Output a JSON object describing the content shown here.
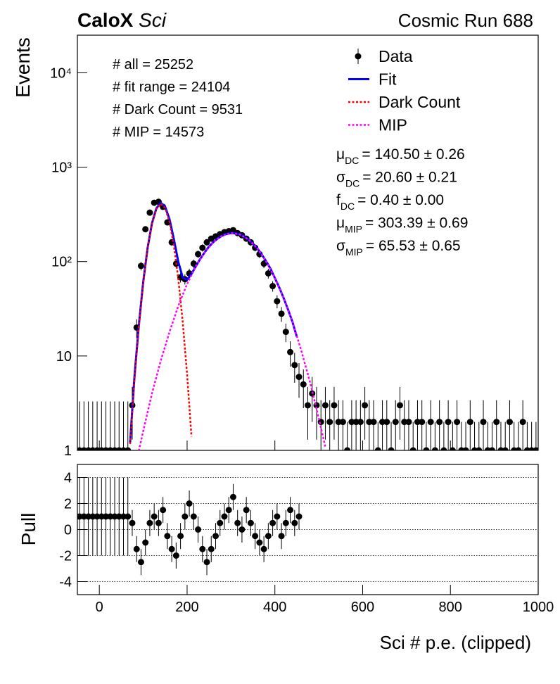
{
  "chart_data": [
    {
      "type": "scatter",
      "title": "CaloX",
      "title_suffix": "Sci",
      "run_label": "Cosmic Run 688",
      "y_label": "Events",
      "log_y": true,
      "legend": "top-right",
      "xlim": [
        -50,
        1000
      ],
      "ylim": [
        1,
        25000
      ],
      "yticks": [
        1,
        10,
        {
          "value": 100,
          "label": "10²"
        },
        {
          "value": 1000,
          "label": "10³"
        },
        {
          "value": 10000,
          "label": "10⁴"
        }
      ],
      "stats": [
        "# all = 25252",
        "# fit range = 24104",
        "# Dark Count = 9531",
        "# MIP = 14573"
      ],
      "fit_parameters": [
        {
          "symbol": "μ",
          "sub": "DC",
          "text": "= 140.50 ± 0.26"
        },
        {
          "symbol": "σ",
          "sub": "DC",
          "text": "= 20.60 ± 0.21"
        },
        {
          "symbol": "f",
          "sub": "DC",
          "text": "= 0.40 ± 0.00"
        },
        {
          "symbol": "μ",
          "sub": "MIP",
          "text": "= 303.39 ± 0.69"
        },
        {
          "symbol": "σ",
          "sub": "MIP",
          "text": "= 65.53 ± 0.65"
        }
      ],
      "series": [
        {
          "name": "Data",
          "mark": "points",
          "color": "#000000",
          "x": [
            -45,
            -35,
            -25,
            -15,
            -5,
            5,
            15,
            25,
            35,
            45,
            55,
            65,
            75,
            85,
            95,
            105,
            115,
            125,
            135,
            145,
            155,
            165,
            175,
            185,
            195,
            205,
            215,
            225,
            235,
            245,
            255,
            265,
            275,
            285,
            295,
            305,
            315,
            325,
            335,
            345,
            355,
            365,
            375,
            385,
            395,
            405,
            415,
            425,
            435,
            445,
            455,
            465,
            475,
            485,
            495,
            505,
            515,
            525,
            535,
            545,
            555,
            565,
            575,
            585,
            595,
            605,
            615,
            625,
            635,
            645,
            655,
            665,
            675,
            685,
            695,
            705,
            715,
            725,
            735,
            745,
            755,
            765,
            775,
            785,
            795,
            805,
            815,
            825,
            835,
            845,
            855,
            865,
            875,
            885,
            895,
            905,
            915,
            925,
            935,
            945,
            955,
            965,
            975,
            985,
            995
          ],
          "values": [
            1,
            1,
            1,
            1,
            1,
            1,
            1,
            1,
            1,
            1,
            1,
            1,
            3,
            20,
            90,
            220,
            330,
            420,
            430,
            380,
            260,
            160,
            95,
            68,
            65,
            75,
            95,
            120,
            140,
            160,
            175,
            185,
            195,
            205,
            210,
            215,
            200,
            190,
            175,
            160,
            140,
            120,
            95,
            75,
            55,
            38,
            28,
            18,
            11,
            8,
            6,
            5,
            3,
            4,
            3,
            2,
            3,
            2,
            3,
            2,
            2,
            1,
            2,
            2,
            2,
            3,
            2,
            2,
            1,
            2,
            2,
            1,
            2,
            3,
            2,
            2,
            1,
            2,
            2,
            1,
            2,
            1,
            2,
            1,
            2,
            1,
            2,
            1,
            1,
            2,
            1,
            1,
            2,
            1,
            1,
            2,
            1,
            1,
            2,
            1,
            1,
            2,
            1,
            1,
            1
          ],
          "errors": [
            2.3,
            2.3,
            2.3,
            2.3,
            2.3,
            2.3,
            2.3,
            2.3,
            2.3,
            2.3,
            2.3,
            2.3,
            1.7,
            4.5,
            9.5,
            15,
            18,
            20,
            21,
            19,
            16,
            13,
            10,
            8,
            8,
            9,
            10,
            11,
            12,
            13,
            13,
            14,
            14,
            14,
            15,
            15,
            14,
            14,
            13,
            13,
            12,
            11,
            10,
            9,
            7,
            6,
            5,
            4,
            3.3,
            2.8,
            2.4,
            2.2,
            1.7,
            2,
            1.7,
            1.4,
            1.7,
            1.4,
            1.7,
            1.4,
            1.4,
            1,
            1.4,
            1.4,
            1.4,
            1.7,
            1.4,
            1.4,
            1,
            1.4,
            1.4,
            1,
            1.4,
            1.7,
            1.4,
            1.4,
            1,
            1.4,
            1.4,
            1,
            1.4,
            1,
            1.4,
            1,
            1.4,
            1,
            1.4,
            1,
            1,
            1.4,
            1,
            1,
            1.4,
            1,
            1,
            1.4,
            1,
            1,
            1.4,
            1,
            1,
            1.4,
            1,
            1,
            1
          ]
        },
        {
          "name": "Fit",
          "mark": "line",
          "color": "#0000ff",
          "dash": false,
          "x": [
            70,
            80,
            90,
            100,
            110,
            120,
            130,
            140,
            150,
            160,
            170,
            180,
            190,
            200,
            210,
            220,
            230,
            240,
            250,
            260,
            270,
            280,
            290,
            300,
            310,
            320,
            330,
            340,
            350,
            360,
            370,
            380,
            390,
            400,
            410,
            420,
            430,
            440,
            450
          ],
          "values": [
            1.2,
            6,
            21,
            61,
            139,
            254,
            366,
            419,
            381,
            280,
            172,
            99,
            68,
            64,
            74,
            89,
            107,
            125,
            144,
            161,
            176,
            188,
            196,
            200,
            199,
            194,
            184,
            171,
            155,
            138,
            119,
            101,
            84,
            67,
            53,
            41,
            31,
            23,
            16
          ]
        },
        {
          "name": "Dark Count",
          "mark": "line",
          "color": "#ff0000",
          "dash": true,
          "x": [
            70,
            80,
            90,
            100,
            110,
            120,
            130,
            140,
            150,
            160,
            170,
            180,
            190,
            200,
            210
          ],
          "values": [
            1.17,
            5.5,
            20,
            59,
            137,
            250,
            360,
            410,
            369,
            262,
            147,
            65,
            23,
            6.3,
            1.4
          ]
        },
        {
          "name": "MIP",
          "mark": "line",
          "color": "#ff00ff",
          "dash": true,
          "x": [
            90,
            100,
            120,
            140,
            160,
            180,
            200,
            220,
            240,
            260,
            280,
            300,
            320,
            340,
            360,
            380,
            400,
            420,
            440,
            460,
            480,
            500,
            515
          ],
          "values": [
            0.99,
            1.6,
            4.0,
            8.9,
            18,
            34,
            58,
            89,
            125,
            161,
            188,
            200,
            194,
            171,
            138,
            101,
            67,
            41,
            23,
            11.5,
            5.3,
            2.2,
            1.08
          ]
        }
      ]
    },
    {
      "type": "scatter",
      "y_label": "Pull",
      "x_label": "Sci # p.e. (clipped)",
      "log_y": false,
      "grid": true,
      "xlim": [
        -50,
        1000
      ],
      "ylim": [
        -5,
        5
      ],
      "xticks": [
        0,
        200,
        400,
        600,
        800,
        1000
      ],
      "yticks": [
        -4,
        -2,
        0,
        2,
        4
      ],
      "series": [
        {
          "mark": "points",
          "color": "#000000",
          "x": [
            -45,
            -35,
            -25,
            -15,
            -5,
            5,
            15,
            25,
            35,
            45,
            55,
            65,
            75,
            85,
            95,
            105,
            115,
            125,
            135,
            145,
            155,
            165,
            175,
            185,
            195,
            205,
            215,
            225,
            235,
            245,
            255,
            265,
            275,
            285,
            295,
            305,
            315,
            325,
            335,
            345,
            355,
            365,
            375,
            385,
            395,
            405,
            415,
            425,
            435,
            445,
            455
          ],
          "values": [
            1,
            1,
            1,
            1,
            1,
            1,
            1,
            1,
            1,
            1,
            1,
            1,
            0.5,
            -1.5,
            -2.5,
            -1.0,
            0.5,
            1.0,
            0.5,
            1.5,
            -0.5,
            -1.5,
            -2.0,
            -0.5,
            1.0,
            2.0,
            1.0,
            0.0,
            -1.5,
            -2.5,
            -1.5,
            -0.5,
            0.5,
            1.0,
            1.5,
            2.5,
            0.5,
            0.0,
            1.5,
            0.5,
            -0.5,
            -1.0,
            -1.5,
            -0.5,
            0.5,
            1.0,
            -0.5,
            0.5,
            1.5,
            0.5,
            1.0
          ],
          "errors": [
            3,
            3,
            3,
            3,
            3,
            3,
            3,
            3,
            3,
            3,
            3,
            3,
            1,
            1,
            1,
            1,
            1,
            1,
            1,
            1,
            1,
            1,
            1,
            1,
            1,
            1,
            1,
            1,
            1,
            1,
            1,
            1,
            1,
            1,
            1,
            1,
            1,
            1,
            1,
            1,
            1,
            1,
            1,
            1,
            1,
            1,
            1,
            1,
            1,
            1,
            1
          ]
        }
      ]
    }
  ]
}
